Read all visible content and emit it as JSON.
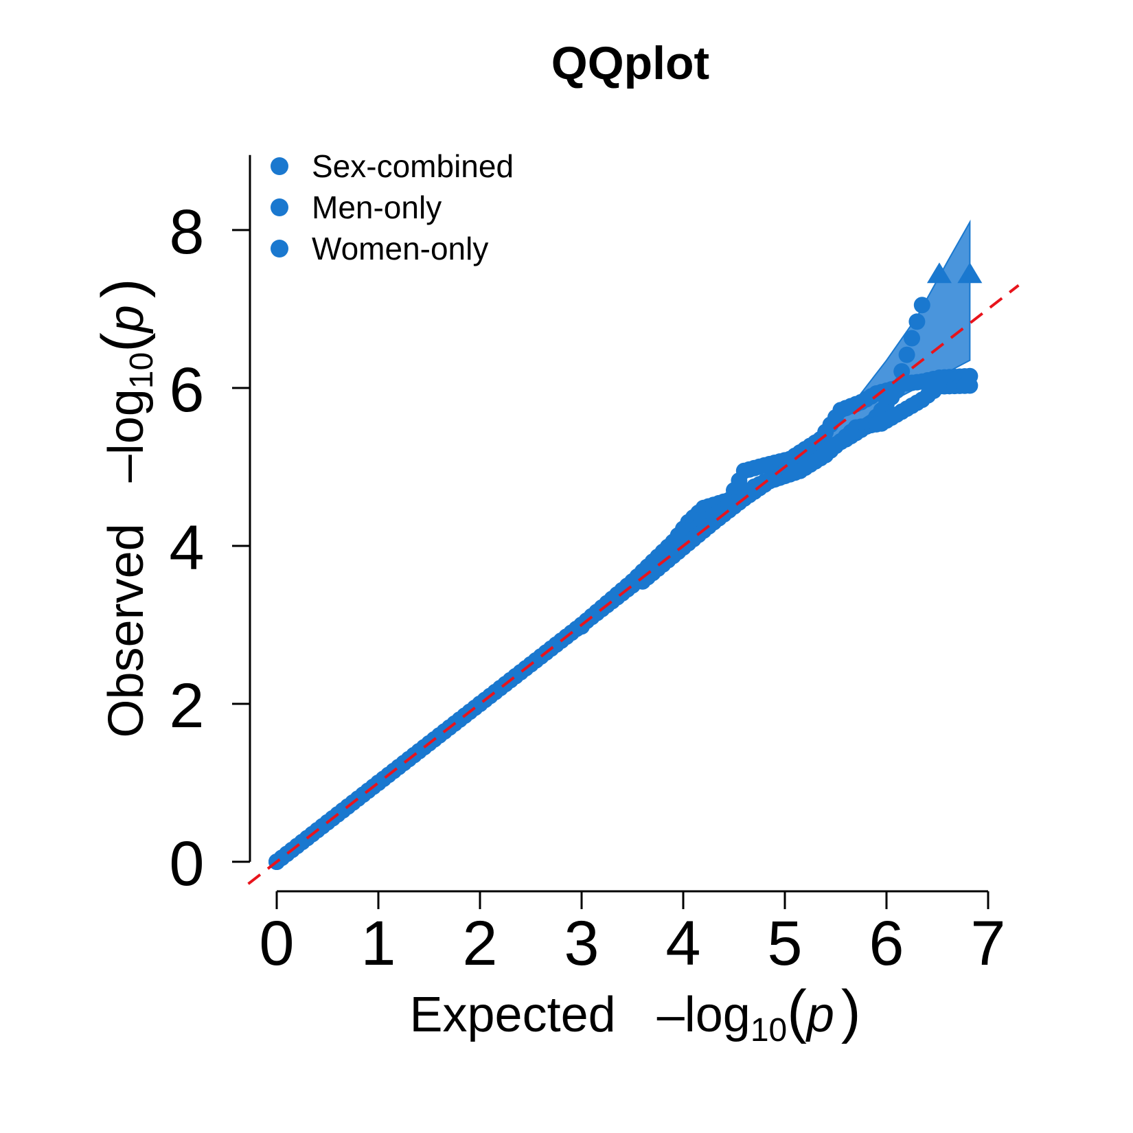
{
  "chart_data": {
    "type": "scatter",
    "title": "QQplot",
    "xlabel": {
      "prefix": "Expected",
      "minus_log": "–log",
      "sub": "10",
      "open": "(",
      "var": "p",
      "close": ")"
    },
    "ylabel": {
      "prefix": "Observed",
      "minus_log": "–log",
      "sub": "10",
      "open": "(",
      "var": "p",
      "close": ")"
    },
    "xlim": [
      0,
      7
    ],
    "ylim": [
      0,
      8
    ],
    "x_ticks": [
      "0",
      "1",
      "2",
      "3",
      "4",
      "5",
      "6",
      "7"
    ],
    "y_ticks": [
      "0",
      "2",
      "4",
      "6",
      "8"
    ],
    "grid": false,
    "legend_position": "top-left",
    "colors": {
      "points": "#1a78cf",
      "ci_band": "#4a95dc",
      "reference_line": "#e8141c"
    },
    "series": [
      {
        "name": "Sex-combined",
        "points": [
          [
            0,
            0
          ],
          [
            0.5,
            0.5
          ],
          [
            1,
            1
          ],
          [
            1.5,
            1.5
          ],
          [
            2,
            2
          ],
          [
            2.5,
            2.5
          ],
          [
            3,
            3
          ],
          [
            3.5,
            3.55
          ],
          [
            3.9,
            4.05
          ],
          [
            4.05,
            4.3
          ],
          [
            4.2,
            4.48
          ],
          [
            4.45,
            4.58
          ],
          [
            4.6,
            4.95
          ],
          [
            4.8,
            5.02
          ],
          [
            5.05,
            5.1
          ],
          [
            5.35,
            5.35
          ],
          [
            5.55,
            5.72
          ],
          [
            5.75,
            5.82
          ],
          [
            5.9,
            5.93
          ],
          [
            6.1,
            6.0
          ],
          [
            6.35,
            7.05
          ]
        ]
      },
      {
        "name": "Men-only",
        "points": [
          [
            0,
            0
          ],
          [
            1,
            1
          ],
          [
            2,
            2
          ],
          [
            3,
            3
          ],
          [
            3.5,
            3.5
          ],
          [
            3.9,
            3.95
          ],
          [
            4.2,
            4.3
          ],
          [
            4.5,
            4.55
          ],
          [
            4.7,
            4.75
          ],
          [
            4.95,
            4.9
          ],
          [
            5.3,
            5.15
          ],
          [
            5.6,
            5.35
          ],
          [
            5.85,
            5.55
          ],
          [
            6.15,
            6.05
          ],
          [
            6.35,
            6.08
          ],
          [
            6.52,
            6.13
          ],
          [
            6.82,
            6.15
          ]
        ]
      },
      {
        "name": "Women-only",
        "points": [
          [
            0,
            0
          ],
          [
            1,
            1
          ],
          [
            2,
            2
          ],
          [
            3,
            2.98
          ],
          [
            3.6,
            3.55
          ],
          [
            4,
            3.98
          ],
          [
            4.3,
            4.3
          ],
          [
            4.6,
            4.6
          ],
          [
            4.85,
            4.82
          ],
          [
            5.15,
            4.95
          ],
          [
            5.4,
            5.15
          ],
          [
            5.7,
            5.5
          ],
          [
            5.95,
            5.55
          ],
          [
            6.15,
            5.7
          ],
          [
            6.35,
            5.85
          ],
          [
            6.52,
            6.02
          ],
          [
            6.82,
            6.03
          ]
        ]
      }
    ],
    "clipped_points": [
      [
        6.52,
        7.45
      ],
      [
        6.82,
        7.45
      ]
    ],
    "ci_band": {
      "x": [
        5.1,
        5.4,
        5.7,
        6.0,
        6.3,
        6.6,
        6.82
      ],
      "upper": [
        5.15,
        5.45,
        5.85,
        6.35,
        6.9,
        7.6,
        8.1
      ],
      "lower": [
        5.05,
        5.25,
        5.55,
        5.8,
        6.0,
        6.2,
        6.35
      ]
    },
    "reference_line": {
      "x": [
        -0.28,
        7.3
      ],
      "y": [
        -0.28,
        7.3
      ],
      "style": "dashed"
    }
  }
}
